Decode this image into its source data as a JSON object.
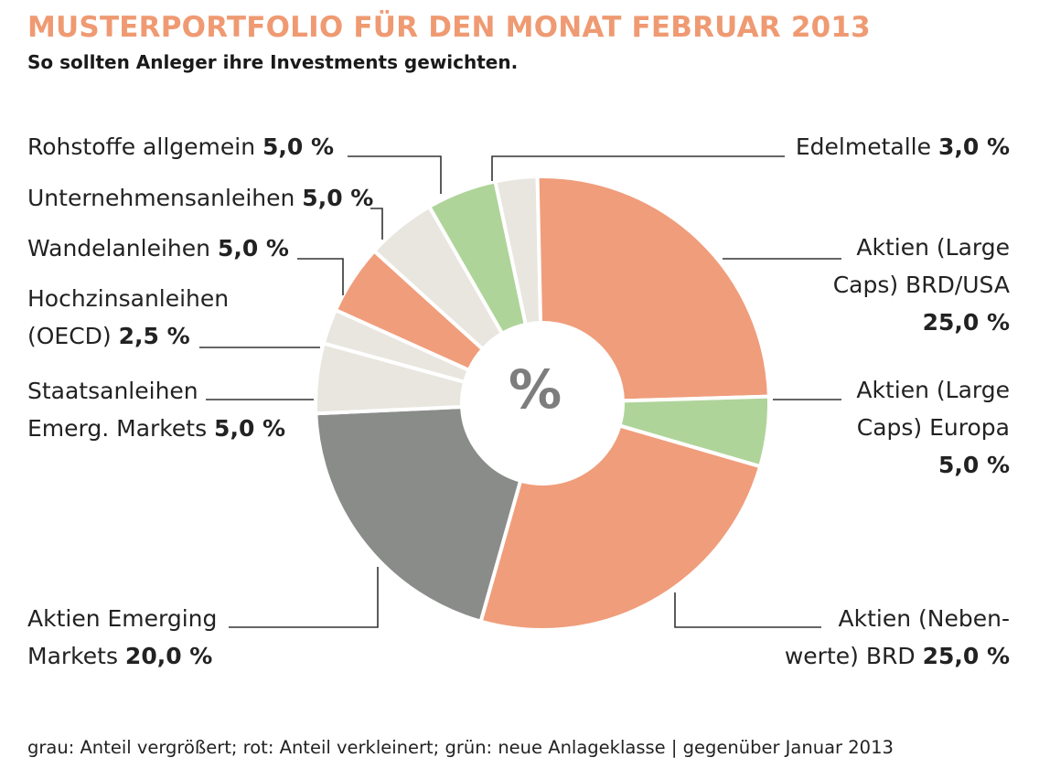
{
  "title": "MUSTERPORTFOLIO FÜR DEN MONAT FEBRUAR 2013",
  "subtitle": "So sollten Anleger ihre Investments gewichten.",
  "center_symbol": "%",
  "footer": "grau: Anteil vergrößert; rot: Anteil verkleinert; grün: neue Anlageklasse | gegenüber Januar 2013",
  "colors": {
    "gray": "#8a8c8a",
    "red": "#f09d7b",
    "green": "#afd49a",
    "light": "#e8e6df",
    "title": "#ef9a72"
  },
  "chart_data": {
    "type": "pie",
    "title": "MUSTERPORTFOLIO FÜR DEN MONAT FEBRUAR 2013",
    "subtitle": "So sollten Anleger ihre Investments gewichten.",
    "unit": "%",
    "slices": [
      {
        "label": "Edelmetalle",
        "value": 3.0,
        "value_text": "3,0 %",
        "color": "light"
      },
      {
        "label": "Aktien (Large Caps) BRD/USA",
        "value": 25.0,
        "value_text": "25,0 %",
        "color": "red"
      },
      {
        "label": "Aktien (Large Caps) Europa",
        "value": 5.0,
        "value_text": "5,0 %",
        "color": "green"
      },
      {
        "label": "Aktien (Nebenwerte) BRD",
        "value": 25.0,
        "value_text": "25,0 %",
        "color": "red"
      },
      {
        "label": "Aktien Emerging Markets",
        "value": 20.0,
        "value_text": "20,0 %",
        "color": "gray"
      },
      {
        "label": "Staatsanleihen Emerg. Markets",
        "value": 5.0,
        "value_text": "5,0 %",
        "color": "light"
      },
      {
        "label": "Hochzinsanleihen (OECD)",
        "value": 2.5,
        "value_text": "2,5 %",
        "color": "light"
      },
      {
        "label": "Wandelanleihen",
        "value": 5.0,
        "value_text": "5,0 %",
        "color": "red"
      },
      {
        "label": "Unternehmensanleihen",
        "value": 5.0,
        "value_text": "5,0 %",
        "color": "light"
      },
      {
        "label": "Rohstoffe allgemein",
        "value": 5.0,
        "value_text": "5,0 %",
        "color": "green"
      }
    ],
    "labels": {
      "edel": {
        "l1": "Edelmetalle "
      },
      "lcus": {
        "l1": "Aktien (Large",
        "l2": "Caps) BRD/USA"
      },
      "lceu": {
        "l1": "Aktien (Large",
        "l2": "Caps) Europa"
      },
      "neben": {
        "l1": "Aktien (Neben-",
        "l2": "werte) BRD "
      },
      "em": {
        "l1": "Aktien Emerging",
        "l2": "Markets "
      },
      "staat": {
        "l1": "Staatsanleihen",
        "l2": "Emerg. Markets "
      },
      "hoch": {
        "l1": "Hochzinsanleihen",
        "l2": "(OECD) "
      },
      "wandel": {
        "l1": "Wandelanleihen "
      },
      "unter": {
        "l1": "Unternehmensanleihen "
      },
      "roh": {
        "l1": "Rohstoffe allgemein "
      }
    }
  }
}
